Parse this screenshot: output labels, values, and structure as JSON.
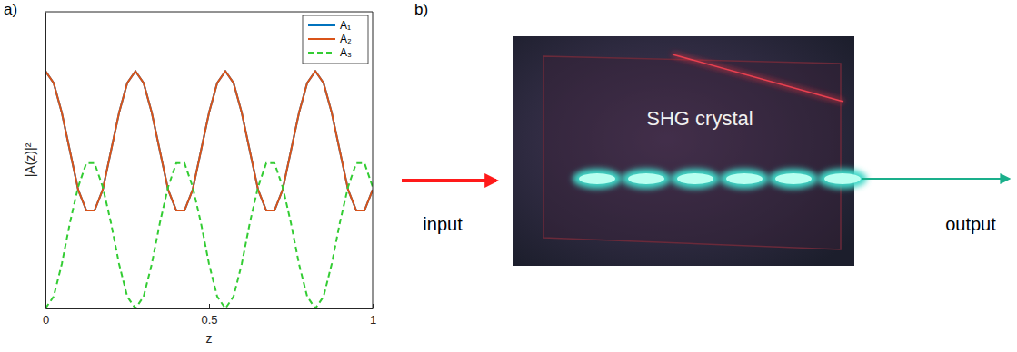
{
  "panel_labels": [
    "a)",
    "b)"
  ],
  "chart_data": {
    "type": "line",
    "x_label": "z",
    "y_label": "|A(z)|²",
    "xlim": [
      0,
      1
    ],
    "ylim": [
      0,
      1
    ],
    "xticks": [
      0,
      0.5,
      1
    ],
    "tick_labels": "x",
    "legend": "upper right",
    "x": [
      0,
      0.025,
      0.05,
      0.075,
      0.1,
      0.125,
      0.15,
      0.175,
      0.2,
      0.225,
      0.25,
      0.275,
      0.3,
      0.325,
      0.35,
      0.375,
      0.4,
      0.425,
      0.45,
      0.475,
      0.5,
      0.525,
      0.55,
      0.575,
      0.6,
      0.625,
      0.65,
      0.675,
      0.7,
      0.725,
      0.75,
      0.775,
      0.8,
      0.825,
      0.85,
      0.875,
      0.9,
      0.925,
      0.95,
      0.975,
      1
    ],
    "series": [
      {
        "name": "A₁",
        "color": "#0072bd",
        "line_style": "solid",
        "values": [
          0.8,
          0.76,
          0.66,
          0.53,
          0.4,
          0.33,
          0.33,
          0.4,
          0.53,
          0.66,
          0.76,
          0.8,
          0.76,
          0.66,
          0.53,
          0.4,
          0.33,
          0.33,
          0.4,
          0.53,
          0.66,
          0.76,
          0.8,
          0.76,
          0.66,
          0.53,
          0.4,
          0.33,
          0.33,
          0.4,
          0.53,
          0.66,
          0.76,
          0.8,
          0.76,
          0.66,
          0.53,
          0.4,
          0.33,
          0.33,
          0.4
        ]
      },
      {
        "name": "A₂",
        "color": "#d95319",
        "line_style": "solid",
        "values": [
          0.8,
          0.76,
          0.66,
          0.53,
          0.4,
          0.33,
          0.33,
          0.4,
          0.53,
          0.66,
          0.76,
          0.8,
          0.76,
          0.66,
          0.53,
          0.4,
          0.33,
          0.33,
          0.4,
          0.53,
          0.66,
          0.76,
          0.8,
          0.76,
          0.66,
          0.53,
          0.4,
          0.33,
          0.33,
          0.4,
          0.53,
          0.66,
          0.76,
          0.8,
          0.76,
          0.66,
          0.53,
          0.4,
          0.33,
          0.33,
          0.4
        ]
      },
      {
        "name": "A₃",
        "color": "#33cc33",
        "line_style": "dashed",
        "values": [
          0,
          0.04,
          0.15,
          0.29,
          0.41,
          0.49,
          0.49,
          0.41,
          0.29,
          0.15,
          0.04,
          0,
          0.04,
          0.15,
          0.29,
          0.41,
          0.49,
          0.49,
          0.41,
          0.29,
          0.15,
          0.04,
          0,
          0.04,
          0.15,
          0.29,
          0.41,
          0.49,
          0.49,
          0.41,
          0.29,
          0.15,
          0.04,
          0,
          0.04,
          0.15,
          0.29,
          0.41,
          0.49,
          0.49,
          0.41
        ]
      }
    ]
  },
  "diagram": {
    "crystal_label": "SHG crystal",
    "input_label": "input",
    "output_label": "output"
  }
}
